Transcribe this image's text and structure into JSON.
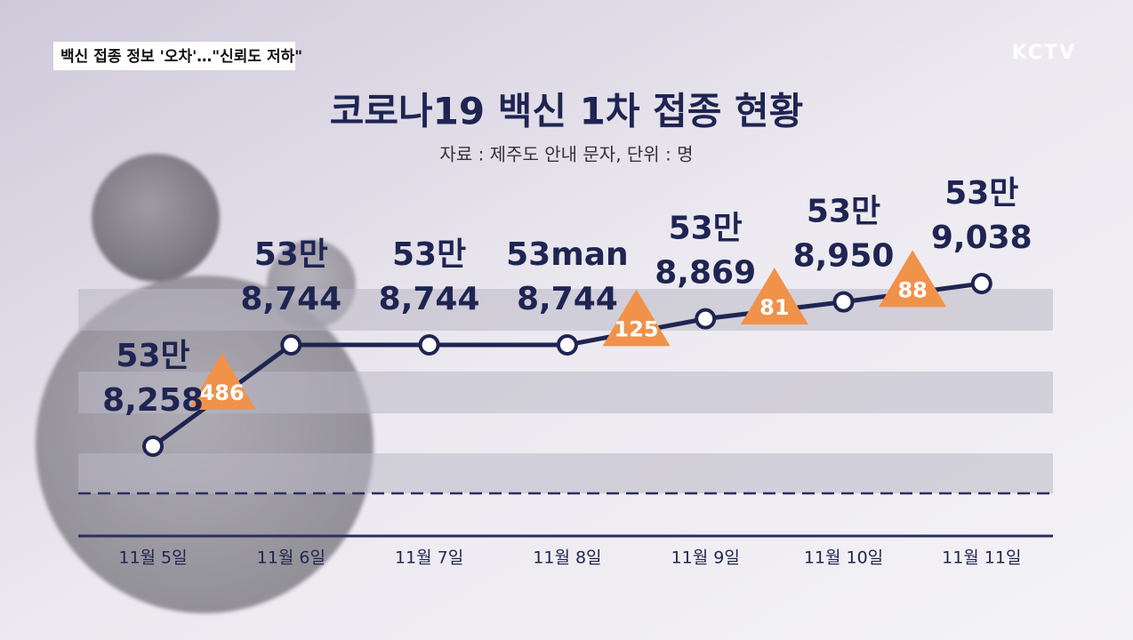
{
  "header": {
    "tag": "백신 접종 정보 '오차'…\"신뢰도 저하\"",
    "logo": "KCTV"
  },
  "chart_data": {
    "type": "line",
    "title": "코로나19 백신 1차 접종 현황",
    "subtitle": "자료 : 제주도 안내 문자, 단위 : 명",
    "categories": [
      "11월 5일",
      "11월 6일",
      "11월 7일",
      "11월 8일",
      "11월 9일",
      "11월 10일",
      "11월 11일"
    ],
    "values": [
      538258,
      538744,
      538744,
      538744,
      538869,
      538950,
      539038
    ],
    "value_labels": [
      [
        "53만",
        "8,258"
      ],
      [
        "53만",
        "8,744"
      ],
      [
        "53만",
        "8,744"
      ],
      [
        "53man",
        "8,744"
      ],
      [
        "53만",
        "8,869"
      ],
      [
        "53만",
        "8,950"
      ],
      [
        "53만",
        "9,038"
      ]
    ],
    "increments": [
      486,
      null,
      null,
      125,
      81,
      88
    ],
    "color": "#1f2552",
    "increment_color": "#f0924a"
  }
}
